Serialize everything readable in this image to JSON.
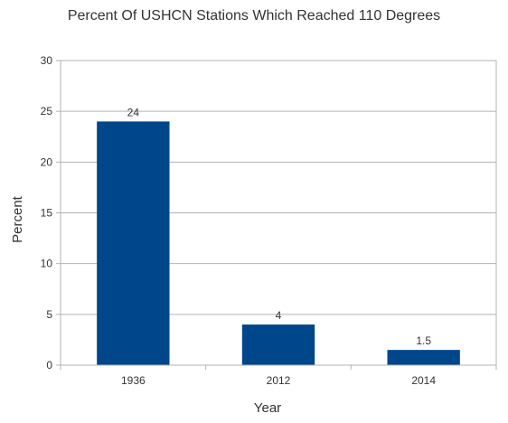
{
  "chart_data": {
    "type": "bar",
    "title": "Percent Of USHCN Stations Which Reached 110 Degrees",
    "xlabel": "Year",
    "ylabel": "Percent",
    "categories": [
      "1936",
      "2012",
      "2014"
    ],
    "values": [
      24,
      4,
      1.5
    ],
    "data_labels": [
      "24",
      "4",
      "1.5"
    ],
    "ylim": [
      0,
      30
    ],
    "yticks": [
      0,
      5,
      10,
      15,
      20,
      25,
      30
    ],
    "grid": true,
    "legend": "none",
    "bar_color": "#00468b",
    "grid_color": "#b3b3b3"
  }
}
